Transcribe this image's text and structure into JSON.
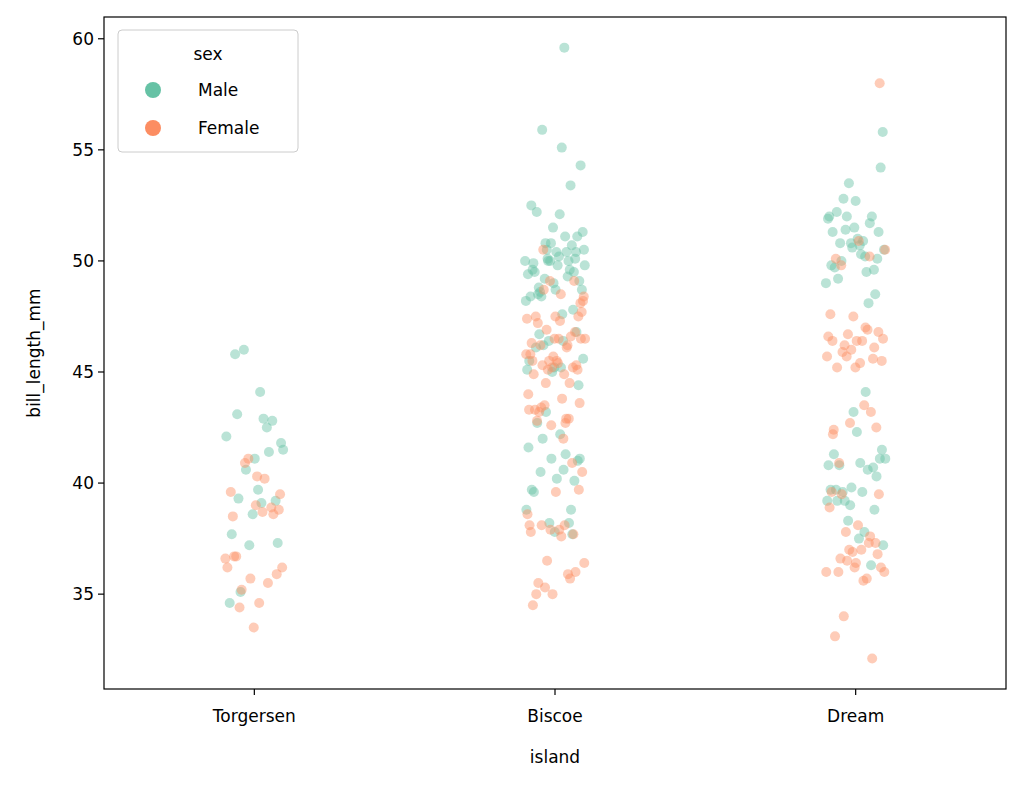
{
  "chart_data": {
    "type": "strip",
    "x_label": "island",
    "y_label": "bill_length_mm",
    "legend_title": "sex",
    "legend": "upper left",
    "grid": false,
    "categories": [
      "Torgersen",
      "Biscoe",
      "Dream"
    ],
    "ylim": [
      30.73,
      60.98
    ],
    "yticks": [
      35,
      40,
      45,
      50,
      55,
      60
    ],
    "series": [
      {
        "name": "Male",
        "color": "#66c2a5",
        "marker": "circle",
        "values": [
          [
            39.1,
            39.3,
            39.2,
            38.6,
            34.6,
            42.5,
            46.0,
            41.8,
            39.7,
            45.8,
            42.8,
            37.2,
            42.1,
            42.9,
            35.1,
            37.3,
            41.1,
            37.7,
            41.4,
            40.6,
            41.5,
            44.1,
            43.1
          ],
          [
            37.7,
            38.2,
            38.8,
            40.6,
            40.5,
            41.0,
            37.8,
            39.7,
            38.2,
            43.2,
            45.6,
            42.2,
            42.7,
            40.1,
            41.1,
            41.6,
            41.3,
            42.0,
            41.1,
            40.2,
            39.6,
            38.8,
            50.0,
            50.0,
            47.6,
            46.7,
            46.8,
            49.0,
            48.4,
            49.3,
            49.2,
            48.7,
            50.2,
            46.1,
            47.8,
            50.0,
            45.1,
            59.6,
            48.4,
            44.4,
            48.7,
            49.6,
            49.6,
            50.5,
            50.5,
            45.2,
            48.5,
            50.1,
            45.0,
            45.5,
            50.4,
            46.2,
            54.3,
            49.8,
            49.5,
            50.7,
            46.4,
            48.2,
            46.4,
            48.6,
            51.1,
            45.2,
            52.5,
            50.0,
            50.8,
            51.3,
            52.1,
            52.2,
            49.5,
            50.8,
            49.4,
            51.1,
            55.9,
            49.1,
            50.4,
            49.9,
            53.4,
            50.1,
            49.8,
            55.1,
            48.8,
            50.4,
            51.5
          ],
          [
            37.2,
            40.9,
            39.2,
            38.8,
            39.8,
            40.8,
            44.1,
            39.6,
            41.1,
            42.3,
            41.3,
            36.3,
            38.3,
            41.1,
            39.6,
            40.8,
            40.3,
            43.2,
            39.7,
            40.6,
            39.2,
            41.5,
            37.5,
            39.7,
            40.7,
            39.0,
            39.2,
            37.8,
            50.0,
            51.3,
            52.7,
            51.3,
            51.7,
            52.0,
            50.5,
            50.3,
            49.2,
            48.5,
            50.6,
            52.0,
            49.5,
            52.8,
            54.2,
            51.0,
            49.7,
            52.0,
            53.5,
            49.0,
            50.9,
            50.8,
            50.1,
            51.5,
            49.8,
            48.1,
            51.4,
            55.8,
            50.7,
            52.2,
            49.6,
            50.8,
            51.9,
            50.2
          ]
        ]
      },
      {
        "name": "Female",
        "color": "#fc8d62",
        "marker": "circle",
        "values": [
          [
            39.5,
            40.3,
            36.7,
            38.9,
            41.1,
            36.6,
            38.7,
            34.4,
            35.9,
            33.5,
            39.6,
            35.5,
            40.9,
            36.2,
            34.6,
            36.7,
            38.6,
            35.7,
            36.2,
            40.2,
            35.2,
            38.8,
            39.0,
            38.5
          ],
          [
            37.8,
            35.9,
            35.3,
            40.5,
            37.9,
            35.0,
            37.7,
            37.9,
            38.6,
            38.1,
            38.1,
            39.7,
            39.6,
            34.5,
            35.7,
            36.5,
            36.4,
            37.6,
            35.5,
            36.0,
            35.0,
            38.1,
            46.1,
            48.7,
            46.5,
            45.4,
            43.3,
            40.9,
            45.5,
            45.8,
            42.0,
            46.2,
            45.1,
            46.5,
            46.3,
            42.9,
            44.5,
            48.2,
            47.3,
            42.8,
            49.1,
            42.6,
            44.0,
            42.7,
            45.3,
            43.6,
            45.5,
            44.9,
            46.6,
            45.1,
            46.5,
            43.8,
            43.2,
            45.3,
            45.7,
            45.8,
            46.2,
            43.5,
            47.7,
            46.5,
            47.5,
            45.2,
            49.1,
            47.4,
            44.9,
            43.4,
            47.5,
            47.5,
            45.5,
            44.5,
            46.9,
            48.4,
            48.5,
            47.2,
            46.8,
            45.2,
            43.3,
            42.9,
            50.5,
            48.1
          ],
          [
            39.5,
            39.5,
            36.4,
            42.2,
            37.6,
            36.5,
            36.0,
            37.0,
            36.0,
            37.3,
            36.9,
            38.9,
            35.7,
            34.0,
            36.2,
            38.1,
            33.1,
            32.1,
            37.0,
            36.0,
            35.6,
            36.6,
            36.8,
            36.2,
            39.6,
            37.3,
            37.8,
            46.5,
            45.4,
            45.2,
            46.1,
            46.0,
            46.6,
            47.0,
            45.9,
            58.0,
            46.4,
            42.4,
            43.2,
            46.7,
            50.5,
            46.4,
            40.9,
            42.5,
            47.5,
            47.6,
            46.9,
            46.2,
            45.5,
            50.9,
            50.1,
            45.6,
            42.7,
            45.7,
            43.5,
            49.8,
            46.8,
            45.2,
            46.4,
            50.2,
            45.7
          ]
        ]
      }
    ]
  }
}
